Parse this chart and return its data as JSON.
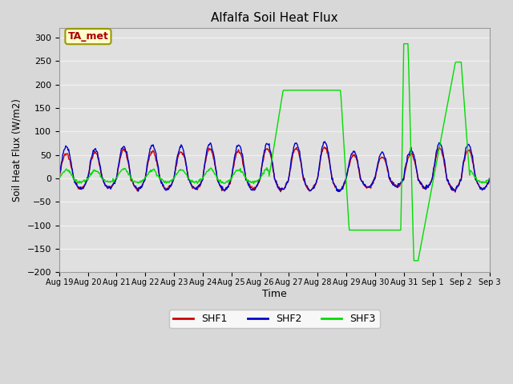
{
  "title": "Alfalfa Soil Heat Flux",
  "ylabel": "Soil Heat Flux (W/m2)",
  "xlabel": "Time",
  "ylim": [
    -200,
    320
  ],
  "yticks": [
    -200,
    -150,
    -100,
    -50,
    0,
    50,
    100,
    150,
    200,
    250,
    300
  ],
  "bg_color": "#d8d8d8",
  "plot_bg_color": "#e0e0e0",
  "grid_color": "#f0f0f0",
  "shf1_color": "#cc0000",
  "shf2_color": "#0000cc",
  "shf3_color": "#00dd00",
  "annotation_text": "TA_met",
  "annotation_bg": "#ffffcc",
  "annotation_border": "#999900",
  "n_days": 15,
  "n_per_day": 48
}
